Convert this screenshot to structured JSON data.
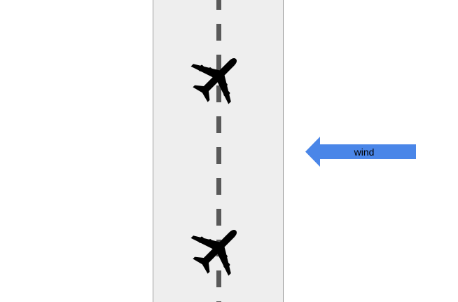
{
  "colors": {
    "background": "#ffffff",
    "runway_fill": "#eeeeee",
    "runway_border": "#9a9a9a",
    "centerline": "#595959",
    "plane": "#000000",
    "wind_arrow": "#4a86e8"
  },
  "icons": {
    "plane_upper": "airplane-icon",
    "plane_lower": "airplane-icon",
    "wind": "left-arrow-icon"
  },
  "wind": {
    "label": "wind",
    "direction": "left"
  }
}
